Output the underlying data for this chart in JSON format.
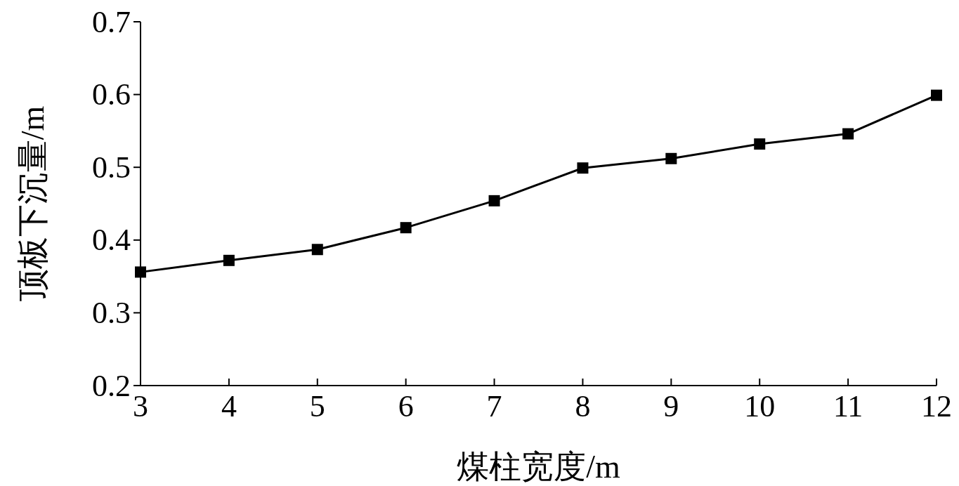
{
  "chart_data": {
    "type": "line",
    "xlabel": "煤柱宽度/m",
    "ylabel": "顶板下沉量/m",
    "x": [
      3,
      4,
      5,
      6,
      7,
      8,
      9,
      10,
      11,
      12
    ],
    "series": [
      {
        "color": "#000000",
        "values": [
          0.356,
          0.372,
          0.387,
          0.417,
          0.454,
          0.499,
          0.512,
          0.532,
          0.546,
          0.599
        ]
      }
    ],
    "xlim": [
      3,
      12
    ],
    "xticks": [
      3,
      4,
      5,
      6,
      7,
      8,
      9,
      10,
      11,
      12
    ],
    "ylim": [
      0.2,
      0.7
    ],
    "yticks": [
      0.2,
      0.3,
      0.4,
      0.5,
      0.6,
      0.7
    ],
    "marker": "square",
    "line_style": "solid",
    "grid": false
  }
}
